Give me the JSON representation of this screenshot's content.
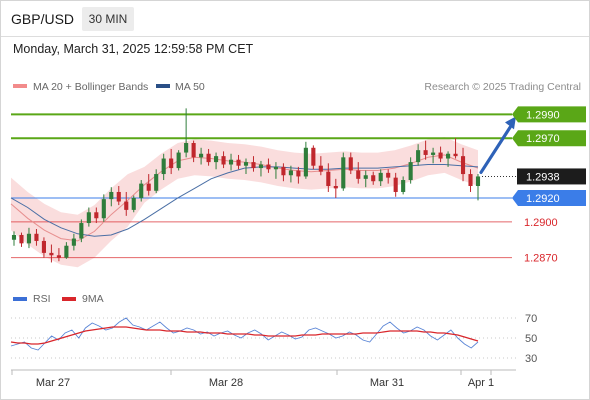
{
  "header": {
    "symbol": "GBP/USD",
    "timeframe": "30 MIN"
  },
  "datetime": "Monday, March 31, 2025 12:59:58 PM CET",
  "legend": {
    "ma20_label": "MA 20 + Bollinger Bands",
    "ma50_label": "MA 50",
    "credit": "Research © 2025 Trading Central"
  },
  "colors": {
    "green": "#5aa717",
    "blue": "#3b7de8",
    "red": "#d9262b",
    "candle_up": "#2f7d3b",
    "candle_down": "#c0272d",
    "band_fill": "#f8d2d2",
    "ma20": "#e78f8f",
    "ma50": "#4a6fa5",
    "last_price_bg": "#1c1c1c",
    "arrow": "#2e62b8",
    "rsi_line": "#5a85d6",
    "rsi_ma": "#d9262b"
  },
  "chart_data": [
    {
      "type": "candlestick",
      "title": "GBP/USD",
      "timeframe": "30 MIN",
      "x_ticks": [
        "Mar 27",
        "Mar 28",
        "Mar 31",
        "Apr 1"
      ],
      "ylim": [
        1.2858,
        1.3002
      ],
      "last_price": {
        "label": "1.2938",
        "value": 1.2938
      },
      "levels": [
        {
          "label": "1.2990",
          "value": 1.299,
          "kind": "resistance",
          "color": "green"
        },
        {
          "label": "1.2970",
          "value": 1.297,
          "kind": "resistance",
          "color": "green"
        },
        {
          "label": "1.2920",
          "value": 1.292,
          "kind": "pivot",
          "color": "blue"
        },
        {
          "label": "1.2900",
          "value": 1.29,
          "kind": "support",
          "color": "red"
        },
        {
          "label": "1.2870",
          "value": 1.287,
          "kind": "support",
          "color": "red"
        }
      ],
      "series": [
        {
          "name": "MA 20 + Bollinger Bands",
          "color": "ma20",
          "values": [
            1.2915,
            1.2903,
            1.2893,
            1.2886,
            1.2884,
            1.2892,
            1.2906,
            1.2918,
            1.2931,
            1.2942,
            1.2951,
            1.2954,
            1.2953,
            1.2951,
            1.295,
            1.2948,
            1.2945,
            1.2943,
            1.2942,
            1.2943,
            1.2944,
            1.2943,
            1.2943,
            1.2945,
            1.2949,
            1.2954,
            1.2956,
            1.295,
            1.2945
          ]
        },
        {
          "name": "MA 50",
          "color": "ma50",
          "values": [
            1.292,
            1.2912,
            1.2902,
            1.2895,
            1.289,
            1.2888,
            1.2889,
            1.2894,
            1.2902,
            1.2911,
            1.292,
            1.2928,
            1.2936,
            1.2941,
            1.2945,
            1.2946,
            1.2946,
            1.2945,
            1.2944,
            1.2944,
            1.2945,
            1.2945,
            1.2945,
            1.2946,
            1.2947,
            1.2948,
            1.2948,
            1.2947,
            1.2946
          ]
        }
      ],
      "candles": [
        [
          1.2885,
          1.2892,
          1.288,
          1.2889
        ],
        [
          1.2889,
          1.2891,
          1.2879,
          1.2882
        ],
        [
          1.2882,
          1.2895,
          1.2878,
          1.289
        ],
        [
          1.289,
          1.2894,
          1.288,
          1.2884
        ],
        [
          1.2884,
          1.2887,
          1.287,
          1.2874
        ],
        [
          1.2874,
          1.2881,
          1.2866,
          1.2872
        ],
        [
          1.2872,
          1.2878,
          1.2867,
          1.287
        ],
        [
          1.287,
          1.2883,
          1.2869,
          1.288
        ],
        [
          1.288,
          1.289,
          1.2876,
          1.2886
        ],
        [
          1.2886,
          1.2902,
          1.2883,
          1.2899
        ],
        [
          1.2899,
          1.2912,
          1.2896,
          1.2908
        ],
        [
          1.2908,
          1.2912,
          1.2899,
          1.2903
        ],
        [
          1.2903,
          1.2923,
          1.29,
          1.2919
        ],
        [
          1.2919,
          1.2929,
          1.2913,
          1.2925
        ],
        [
          1.2925,
          1.293,
          1.2914,
          1.2917
        ],
        [
          1.2917,
          1.2925,
          1.2905,
          1.291
        ],
        [
          1.291,
          1.2922,
          1.2908,
          1.292
        ],
        [
          1.292,
          1.2935,
          1.2917,
          1.2932
        ],
        [
          1.2932,
          1.294,
          1.2922,
          1.2926
        ],
        [
          1.2926,
          1.2944,
          1.2924,
          1.294
        ],
        [
          1.294,
          1.2957,
          1.2935,
          1.2953
        ],
        [
          1.2953,
          1.2961,
          1.294,
          1.2945
        ],
        [
          1.2945,
          1.296,
          1.2943,
          1.2958
        ],
        [
          1.2958,
          1.2995,
          1.2954,
          1.2966
        ],
        [
          1.2966,
          1.2968,
          1.295,
          1.2954
        ],
        [
          1.2954,
          1.2962,
          1.2948,
          1.2957
        ],
        [
          1.2957,
          1.2961,
          1.2947,
          1.295
        ],
        [
          1.295,
          1.2958,
          1.2944,
          1.2955
        ],
        [
          1.2955,
          1.2959,
          1.2945,
          1.2948
        ],
        [
          1.2948,
          1.2957,
          1.2943,
          1.2952
        ],
        [
          1.2952,
          1.2956,
          1.2944,
          1.2947
        ],
        [
          1.2947,
          1.2953,
          1.294,
          1.295
        ],
        [
          1.295,
          1.2955,
          1.2942,
          1.2945
        ],
        [
          1.2945,
          1.2951,
          1.2938,
          1.2948
        ],
        [
          1.2948,
          1.2953,
          1.2941,
          1.2944
        ],
        [
          1.2944,
          1.295,
          1.2936,
          1.2946
        ],
        [
          1.2946,
          1.2949,
          1.2934,
          1.2939
        ],
        [
          1.2939,
          1.2947,
          1.2933,
          1.2943
        ],
        [
          1.2943,
          1.2946,
          1.2932,
          1.2938
        ],
        [
          1.2938,
          1.2967,
          1.2936,
          1.2962
        ],
        [
          1.2962,
          1.2964,
          1.2944,
          1.2947
        ],
        [
          1.2947,
          1.2955,
          1.2939,
          1.2942
        ],
        [
          1.2942,
          1.2949,
          1.2925,
          1.293
        ],
        [
          1.293,
          1.2936,
          1.292,
          1.2928
        ],
        [
          1.2928,
          1.2958,
          1.2926,
          1.2954
        ],
        [
          1.2954,
          1.2958,
          1.294,
          1.2943
        ],
        [
          1.2943,
          1.295,
          1.2932,
          1.2936
        ],
        [
          1.2936,
          1.2943,
          1.2929,
          1.2939
        ],
        [
          1.2939,
          1.2942,
          1.2931,
          1.2934
        ],
        [
          1.2934,
          1.2944,
          1.293,
          1.2941
        ],
        [
          1.2941,
          1.2944,
          1.2932,
          1.2937
        ],
        [
          1.2937,
          1.2941,
          1.2921,
          1.2925
        ],
        [
          1.2925,
          1.2938,
          1.2923,
          1.2935
        ],
        [
          1.2935,
          1.2954,
          1.2932,
          1.295
        ],
        [
          1.295,
          1.2965,
          1.2947,
          1.296
        ],
        [
          1.296,
          1.2968,
          1.2952,
          1.2956
        ],
        [
          1.2956,
          1.2962,
          1.2949,
          1.2958
        ],
        [
          1.2958,
          1.2963,
          1.295,
          1.2953
        ],
        [
          1.2953,
          1.2959,
          1.2946,
          1.2957
        ],
        [
          1.2957,
          1.297,
          1.2953,
          1.2955
        ],
        [
          1.2955,
          1.2962,
          1.2934,
          1.294
        ],
        [
          1.294,
          1.2944,
          1.2925,
          1.293
        ],
        [
          1.293,
          1.294,
          1.2918,
          1.2938
        ]
      ]
    },
    {
      "type": "line",
      "title": "RSI",
      "legend": [
        "RSI",
        "9MA"
      ],
      "y_ticks": [
        "70",
        "50",
        "30"
      ],
      "ylim": [
        24,
        76
      ],
      "series": [
        {
          "name": "RSI",
          "color": "rsi_line",
          "values": [
            42,
            44,
            46,
            40,
            38,
            45,
            52,
            48,
            55,
            58,
            50,
            60,
            65,
            62,
            58,
            60,
            66,
            70,
            63,
            61,
            58,
            62,
            66,
            60,
            55,
            57,
            60,
            58,
            54,
            56,
            52,
            55,
            57,
            53,
            50,
            55,
            58,
            54,
            48,
            52,
            56,
            53,
            49,
            51,
            58,
            60,
            57,
            54,
            50,
            52,
            56,
            53,
            48,
            46,
            54,
            62,
            66,
            60,
            55,
            57,
            61,
            58,
            52,
            48,
            53,
            58,
            50,
            44,
            40,
            46
          ]
        },
        {
          "name": "9MA",
          "color": "rsi_ma",
          "values": [
            46,
            45,
            45,
            44,
            44,
            45,
            47,
            49,
            51,
            53,
            55,
            57,
            58,
            59,
            60,
            61,
            61,
            61,
            60,
            59,
            58,
            58,
            58,
            57,
            57,
            57,
            56,
            56,
            56,
            55,
            55,
            55,
            54,
            54,
            54,
            54,
            53,
            53,
            52,
            52,
            52,
            52,
            52,
            53,
            53,
            53,
            54,
            54,
            54,
            54,
            54,
            54,
            55,
            55,
            55,
            56,
            57,
            57,
            57,
            57,
            57,
            56,
            56,
            55,
            55,
            54,
            53,
            51,
            49,
            47
          ]
        }
      ]
    }
  ]
}
